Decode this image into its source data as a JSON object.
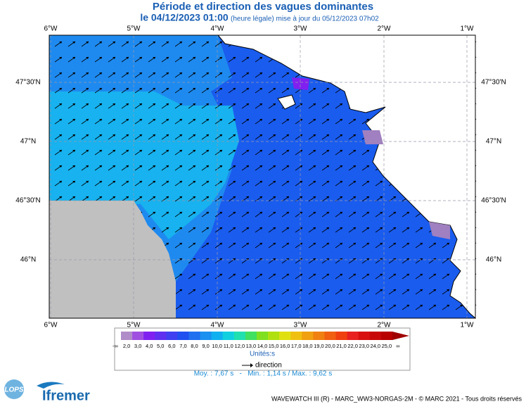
{
  "header": {
    "title": "Période et direction des vagues dominantes",
    "date": "le 04/12/2023 01:00",
    "update": "(heure légale) mise à jour du 05/12/2023 07h02"
  },
  "map": {
    "lon_labels": [
      "6°W",
      "5°W",
      "4°W",
      "3°W",
      "2°W",
      "1°W"
    ],
    "lat_labels": [
      "47°30'N",
      "47°N",
      "46°30'N",
      "46°N"
    ]
  },
  "legend": {
    "labels": [
      "-∞",
      "2,0",
      "3,0",
      "4,0",
      "5,0",
      "6,0",
      "7,0",
      "8,0",
      "9,0",
      "10,0",
      "11,0",
      "12,0",
      "13,0",
      "14,0",
      "15,0",
      "16,0",
      "17,0",
      "18,0",
      "19,0",
      "20,0",
      "21,0",
      "22,0",
      "23,0",
      "24,0",
      "25,0",
      "∞"
    ],
    "colors": [
      "#b08cc8",
      "#a050e0",
      "#8020f0",
      "#6030f0",
      "#4040f0",
      "#2050f0",
      "#2070f0",
      "#1a90f0",
      "#10b0f0",
      "#10d0e0",
      "#20e0b0",
      "#40e060",
      "#80e020",
      "#b0e010",
      "#e0e010",
      "#f0c010",
      "#f0a010",
      "#f08010",
      "#f06010",
      "#f04010",
      "#e82020",
      "#d81010",
      "#c80808",
      "#b80000",
      "#a00000"
    ],
    "units": "Unités:s",
    "direction": "direction"
  },
  "stats": "Moy. : 7,67 s   -   Min. : 1,14 s / Max. : 9,62 s",
  "footer": "WAVEWATCH III (R) - MARC_WW3-NORGAS-2M - © MARC 2021 - Tous droits réservés",
  "logos": {
    "lops": "LOPS",
    "ifremer": "Ifremer"
  }
}
